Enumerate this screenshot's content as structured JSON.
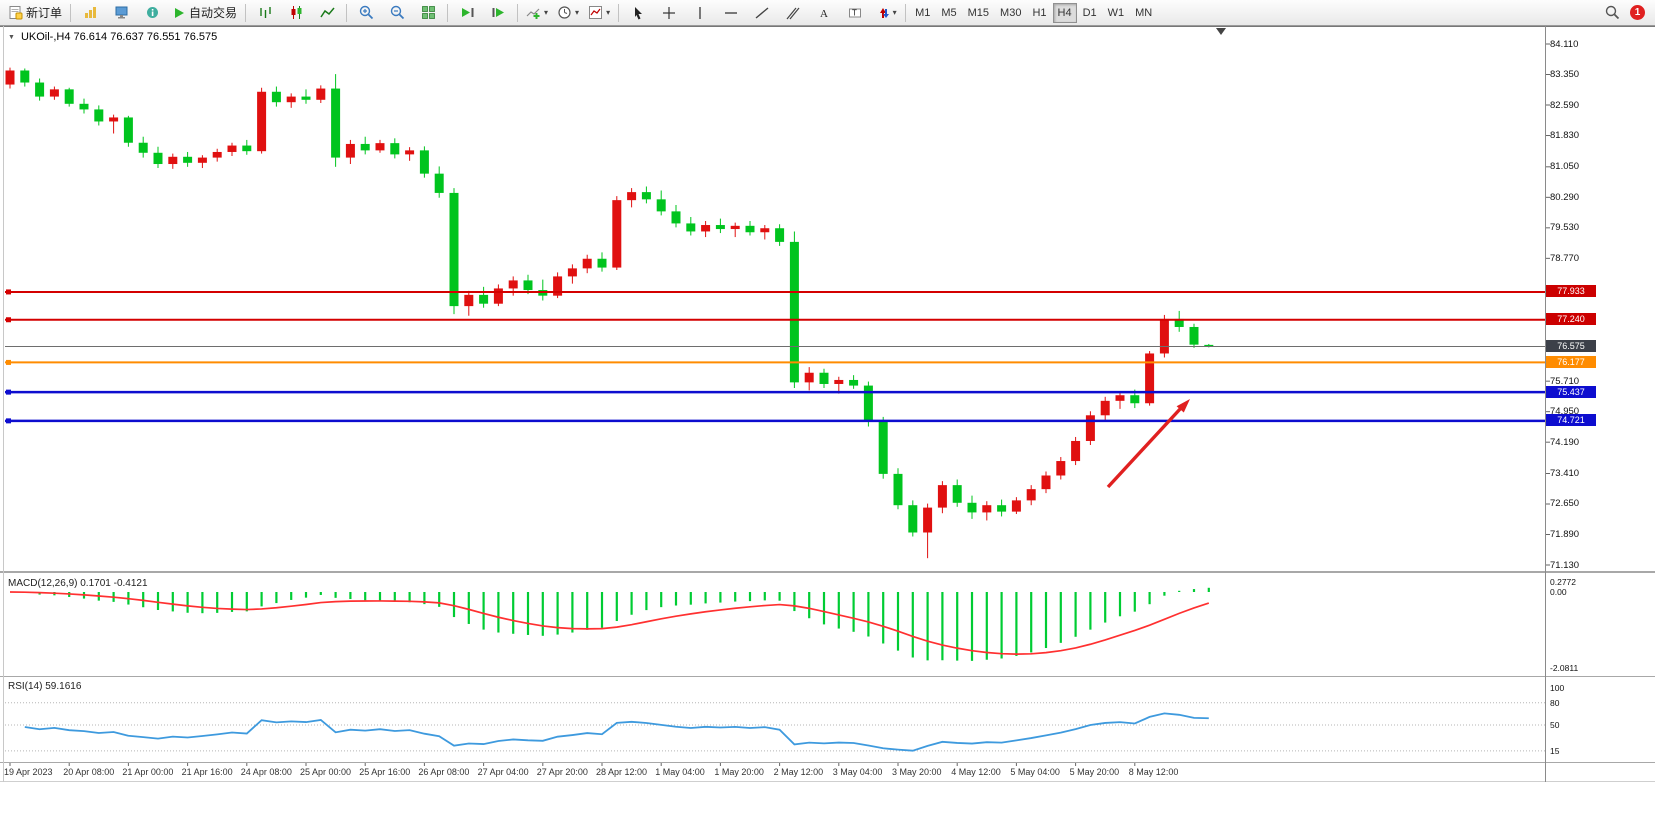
{
  "toolbar": {
    "new_order": "新订单",
    "autotrade": "自动交易",
    "timeframes": [
      "M1",
      "M5",
      "M15",
      "M30",
      "H1",
      "H4",
      "D1",
      "W1",
      "MN"
    ],
    "active_timeframe": "H4",
    "notification_count": "1"
  },
  "chart": {
    "title": "UKOil-,H4  76.614 76.637 76.551 76.575",
    "symbol": "UKOil-",
    "period": "H4",
    "ohlc": {
      "open": "76.614",
      "high": "76.637",
      "low": "76.551",
      "close": "76.575"
    },
    "price_axis": [
      "84.110",
      "83.350",
      "82.590",
      "81.830",
      "81.050",
      "80.290",
      "79.530",
      "78.770",
      "75.710",
      "74.950",
      "74.190",
      "73.410",
      "72.650",
      "71.890",
      "71.130"
    ],
    "levels": [
      {
        "label": "77.933",
        "color": "#d40000",
        "tag_bg": "#cc0000",
        "width": 2,
        "handle": true,
        "role": "resistance-line"
      },
      {
        "label": "77.240",
        "color": "#d40000",
        "tag_bg": "#cc0000",
        "width": 2,
        "handle": true,
        "role": "resistance-line"
      },
      {
        "label": "76.575",
        "color": "#6e6e6e",
        "tag_bg": "#3c4049",
        "width": 1,
        "handle": false,
        "role": "current-price"
      },
      {
        "label": "76.177",
        "color": "#ff8c00",
        "tag_bg": "#ff8c00",
        "width": 2,
        "handle": true,
        "role": "pivot-line"
      },
      {
        "label": "75.437",
        "color": "#0d0dcf",
        "tag_bg": "#0d0dcf",
        "width": 2.5,
        "handle": true,
        "role": "support-line"
      },
      {
        "label": "74.721",
        "color": "#0d0dcf",
        "tag_bg": "#0d0dcf",
        "width": 2.5,
        "handle": true,
        "role": "support-line"
      }
    ],
    "time_axis": [
      "19 Apr 2023",
      "20 Apr 08:00",
      "21 Apr 00:00",
      "21 Apr 16:00",
      "24 Apr 08:00",
      "25 Apr 00:00",
      "25 Apr 16:00",
      "26 Apr 08:00",
      "27 Apr 04:00",
      "27 Apr 20:00",
      "28 Apr 12:00",
      "1 May 04:00",
      "1 May 20:00",
      "2 May 12:00",
      "3 May 04:00",
      "3 May 20:00",
      "4 May 12:00",
      "5 May 04:00",
      "5 May 20:00",
      "8 May 12:00"
    ],
    "annotation": {
      "type": "arrow",
      "color": "#e02020",
      "direction": "up-right"
    }
  },
  "macd": {
    "display": "MACD(12,26,9) 0.1701 -0.4121",
    "name": "MACD",
    "params": {
      "fast": 12,
      "slow": 26,
      "signal": 9
    },
    "value": "0.1701",
    "signal_value": "-0.4121",
    "axis": [
      "0.2772",
      "0.00",
      "-2.0811"
    ],
    "histogram_color": "#00cc33",
    "signal_color": "#ff3030"
  },
  "rsi": {
    "display": "RSI(14) 59.1616",
    "name": "RSI",
    "period": 14,
    "value": "59.1616",
    "axis": [
      "100",
      "80",
      "50",
      "15"
    ],
    "line_color": "#3e9ade"
  },
  "chart_data": {
    "type": "candlestick",
    "symbol": "UKOil-",
    "timeframe": "H4",
    "up_color": "#e01010",
    "down_color": "#00c41e",
    "note": "red = bullish, green = bearish (Chinese convention); values ordered [open,high,low,close]",
    "ylim": [
      71.13,
      84.11
    ],
    "candles": [
      [
        83.1,
        83.52,
        83.0,
        83.45
      ],
      [
        83.45,
        83.5,
        83.05,
        83.15
      ],
      [
        83.15,
        83.25,
        82.7,
        82.8
      ],
      [
        82.8,
        83.05,
        82.72,
        82.98
      ],
      [
        82.98,
        83.02,
        82.55,
        82.62
      ],
      [
        82.62,
        82.75,
        82.38,
        82.48
      ],
      [
        82.48,
        82.58,
        82.08,
        82.18
      ],
      [
        82.18,
        82.35,
        81.88,
        82.28
      ],
      [
        82.28,
        82.32,
        81.55,
        81.65
      ],
      [
        81.65,
        81.8,
        81.28,
        81.4
      ],
      [
        81.4,
        81.55,
        81.02,
        81.12
      ],
      [
        81.12,
        81.38,
        81.0,
        81.3
      ],
      [
        81.3,
        81.42,
        81.05,
        81.15
      ],
      [
        81.15,
        81.34,
        81.02,
        81.28
      ],
      [
        81.28,
        81.5,
        81.18,
        81.42
      ],
      [
        81.42,
        81.65,
        81.32,
        81.58
      ],
      [
        81.58,
        81.72,
        81.35,
        81.44
      ],
      [
        81.44,
        83.02,
        81.38,
        82.92
      ],
      [
        82.92,
        83.05,
        82.55,
        82.66
      ],
      [
        82.66,
        82.88,
        82.52,
        82.8
      ],
      [
        82.8,
        82.98,
        82.62,
        82.72
      ],
      [
        82.72,
        83.08,
        82.64,
        83.0
      ],
      [
        83.0,
        83.36,
        81.05,
        81.28
      ],
      [
        81.28,
        81.72,
        81.12,
        81.62
      ],
      [
        81.62,
        81.8,
        81.36,
        81.46
      ],
      [
        81.46,
        81.72,
        81.4,
        81.64
      ],
      [
        81.64,
        81.76,
        81.26,
        81.36
      ],
      [
        81.36,
        81.54,
        81.2,
        81.46
      ],
      [
        81.46,
        81.56,
        80.78,
        80.88
      ],
      [
        80.88,
        81.06,
        80.28,
        80.4
      ],
      [
        80.4,
        80.52,
        77.38,
        77.58
      ],
      [
        77.58,
        77.96,
        77.34,
        77.86
      ],
      [
        77.86,
        78.06,
        77.54,
        77.64
      ],
      [
        77.64,
        78.12,
        77.58,
        78.02
      ],
      [
        78.02,
        78.32,
        77.84,
        78.22
      ],
      [
        78.22,
        78.36,
        77.88,
        77.98
      ],
      [
        77.98,
        78.24,
        77.72,
        77.84
      ],
      [
        77.84,
        78.42,
        77.78,
        78.32
      ],
      [
        78.32,
        78.62,
        78.14,
        78.52
      ],
      [
        78.52,
        78.86,
        78.4,
        78.76
      ],
      [
        78.76,
        78.92,
        78.44,
        78.54
      ],
      [
        78.54,
        80.32,
        78.48,
        80.22
      ],
      [
        80.22,
        80.52,
        80.04,
        80.42
      ],
      [
        80.42,
        80.56,
        80.14,
        80.24
      ],
      [
        80.24,
        80.46,
        79.84,
        79.94
      ],
      [
        79.94,
        80.1,
        79.54,
        79.64
      ],
      [
        79.64,
        79.8,
        79.34,
        79.44
      ],
      [
        79.44,
        79.7,
        79.3,
        79.6
      ],
      [
        79.6,
        79.76,
        79.4,
        79.5
      ],
      [
        79.5,
        79.66,
        79.3,
        79.58
      ],
      [
        79.58,
        79.7,
        79.34,
        79.42
      ],
      [
        79.42,
        79.6,
        79.24,
        79.52
      ],
      [
        79.52,
        79.62,
        79.08,
        79.18
      ],
      [
        79.18,
        79.44,
        75.54,
        75.68
      ],
      [
        75.68,
        76.06,
        75.48,
        75.92
      ],
      [
        75.92,
        76.02,
        75.54,
        75.64
      ],
      [
        75.64,
        75.82,
        75.4,
        75.74
      ],
      [
        75.74,
        75.86,
        75.52,
        75.6
      ],
      [
        75.6,
        75.7,
        74.58,
        74.7
      ],
      [
        74.7,
        74.82,
        73.28,
        73.4
      ],
      [
        73.4,
        73.54,
        72.52,
        72.62
      ],
      [
        72.62,
        72.74,
        71.84,
        71.94
      ],
      [
        71.94,
        72.66,
        71.3,
        72.56
      ],
      [
        72.56,
        73.22,
        72.42,
        73.12
      ],
      [
        73.12,
        73.26,
        72.58,
        72.68
      ],
      [
        72.68,
        72.86,
        72.28,
        72.44
      ],
      [
        72.44,
        72.72,
        72.24,
        72.62
      ],
      [
        72.62,
        72.76,
        72.34,
        72.46
      ],
      [
        72.46,
        72.82,
        72.4,
        72.74
      ],
      [
        72.74,
        73.12,
        72.62,
        73.02
      ],
      [
        73.02,
        73.46,
        72.92,
        73.36
      ],
      [
        73.36,
        73.82,
        73.26,
        73.72
      ],
      [
        73.72,
        74.32,
        73.62,
        74.22
      ],
      [
        74.22,
        74.96,
        74.12,
        74.86
      ],
      [
        74.86,
        75.32,
        74.72,
        75.22
      ],
      [
        75.22,
        75.46,
        75.02,
        75.36
      ],
      [
        75.36,
        75.5,
        75.04,
        75.16
      ],
      [
        75.16,
        76.46,
        75.1,
        76.4
      ],
      [
        76.4,
        77.36,
        76.3,
        77.26
      ],
      [
        77.26,
        77.46,
        76.94,
        77.06
      ],
      [
        77.06,
        77.14,
        76.54,
        76.62
      ],
      [
        76.614,
        76.637,
        76.551,
        76.575
      ]
    ]
  }
}
